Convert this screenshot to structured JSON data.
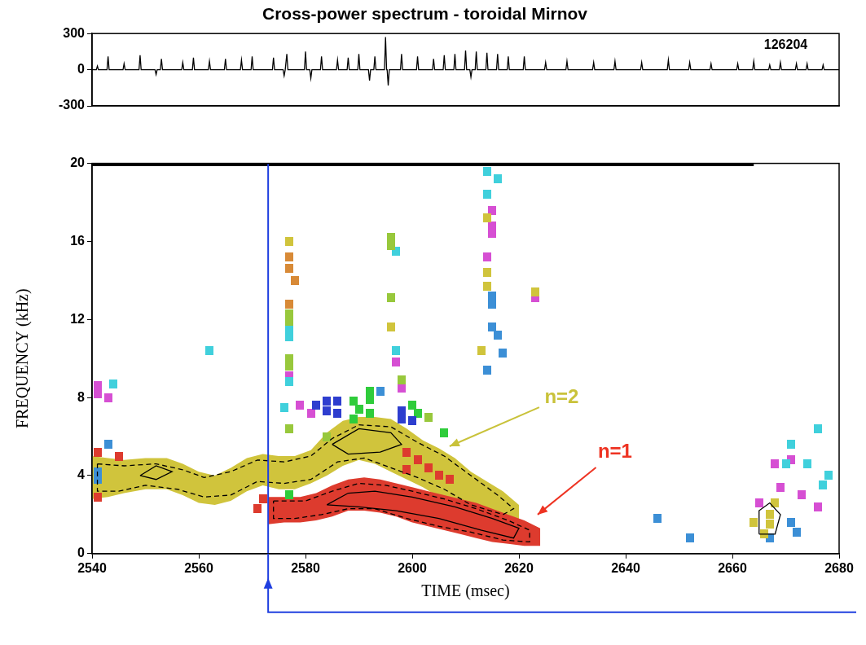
{
  "chart_data": [
    {
      "type": "line",
      "title": "Cross-power spectrum - toroidal Mirnov",
      "xlim": [
        2540,
        2680
      ],
      "ylim": [
        -300,
        300
      ],
      "yticks": [
        -300,
        0,
        300
      ],
      "grid": false,
      "tick_labels": "y",
      "annotations": [
        {
          "text": "126204",
          "x": 2670,
          "y": 200
        }
      ],
      "series": [
        {
          "type": "line",
          "color": "#000000",
          "line_style": "solid",
          "x": [
            2540,
            2540.8,
            2541,
            2541.2,
            2542.8,
            2543,
            2543.2,
            2545.8,
            2546,
            2546.2,
            2548.8,
            2549,
            2549.2,
            2551.8,
            2552,
            2552.2,
            2552.8,
            2553,
            2553.2,
            2556.8,
            2557,
            2557.2,
            2558.8,
            2559,
            2559.2,
            2561.8,
            2562,
            2562.2,
            2564.8,
            2565,
            2565.2,
            2567.8,
            2568,
            2568.2,
            2569.8,
            2570,
            2570.2,
            2573.8,
            2574,
            2574.2,
            2575.8,
            2576,
            2576.2,
            2576.3,
            2576.5,
            2576.7,
            2579.8,
            2580,
            2580.2,
            2580.8,
            2581,
            2581.2,
            2582.8,
            2583,
            2583.2,
            2585.8,
            2586,
            2586.2,
            2587.8,
            2588,
            2588.2,
            2589.8,
            2590,
            2590.2,
            2591.8,
            2592,
            2592.2,
            2592.8,
            2593,
            2593.2,
            2594.8,
            2595,
            2595.2,
            2595.3,
            2595.5,
            2595.7,
            2597.8,
            2598,
            2598.2,
            2600.8,
            2601,
            2601.2,
            2603.8,
            2604,
            2604.2,
            2605.8,
            2606,
            2606.2,
            2607.8,
            2608,
            2608.2,
            2609.8,
            2610,
            2610.2,
            2610.8,
            2611,
            2611.2,
            2611.8,
            2612,
            2612.2,
            2613.8,
            2614,
            2614.2,
            2615.8,
            2616,
            2616.2,
            2617.8,
            2618,
            2618.2,
            2620.8,
            2621,
            2621.2,
            2624.8,
            2625,
            2625.2,
            2628.8,
            2629,
            2629.2,
            2633.8,
            2634,
            2634.2,
            2637.8,
            2638,
            2638.2,
            2642.8,
            2643,
            2643.2,
            2647.8,
            2648,
            2648.2,
            2651.8,
            2652,
            2652.2,
            2655.8,
            2656,
            2656.2,
            2660.8,
            2661,
            2661.2,
            2663.8,
            2664,
            2664.2,
            2666.8,
            2667,
            2667.2,
            2668.8,
            2669,
            2669.2,
            2671.8,
            2672,
            2672.2,
            2673.8,
            2674,
            2674.2,
            2676.8,
            2677,
            2677.2,
            2680
          ],
          "values": [
            0,
            0,
            30,
            0,
            0,
            110,
            0,
            0,
            50,
            0,
            0,
            120,
            0,
            0,
            -40,
            0,
            0,
            90,
            0,
            0,
            60,
            0,
            0,
            100,
            0,
            0,
            70,
            0,
            0,
            90,
            0,
            0,
            80,
            0,
            0,
            110,
            0,
            0,
            100,
            0,
            0,
            -50,
            0,
            0,
            130,
            0,
            0,
            150,
            0,
            0,
            -70,
            0,
            0,
            110,
            0,
            0,
            80,
            0,
            0,
            100,
            0,
            0,
            130,
            0,
            0,
            -90,
            0,
            0,
            110,
            0,
            0,
            270,
            0,
            0,
            -130,
            0,
            0,
            130,
            0,
            0,
            110,
            0,
            0,
            90,
            0,
            0,
            120,
            0,
            0,
            130,
            0,
            0,
            160,
            0,
            0,
            -60,
            0,
            0,
            150,
            0,
            0,
            140,
            0,
            0,
            130,
            0,
            0,
            110,
            0,
            0,
            110,
            0,
            0,
            60,
            0,
            0,
            70,
            0,
            0,
            60,
            0,
            0,
            70,
            0,
            0,
            60,
            0,
            0,
            80,
            0,
            0,
            60,
            0,
            0,
            50,
            0,
            0,
            50,
            0,
            0,
            70,
            0,
            0,
            40,
            0,
            0,
            60,
            0,
            0,
            50,
            0,
            0,
            50,
            0,
            0,
            40,
            0,
            0
          ]
        }
      ]
    },
    {
      "type": "scatter",
      "x_label": "TIME (msec)",
      "y_label": "FREQUENCY (kHz)",
      "xlim": [
        2540,
        2680
      ],
      "xticks": [
        2540,
        2560,
        2580,
        2600,
        2620,
        2640,
        2660,
        2680
      ],
      "ylim": [
        0,
        20
      ],
      "yticks": [
        0,
        4,
        8,
        12,
        16,
        20
      ],
      "grid": false,
      "annotations": [
        {
          "text": "n=2",
          "color": "#c9c23a",
          "x": 2628,
          "y": 8.0,
          "arrow_to": [
            2607,
            5.5
          ]
        },
        {
          "text": "n=1",
          "color": "#ee3322",
          "x": 2638,
          "y": 5.2,
          "arrow_to": [
            2623.5,
            2.0
          ]
        }
      ],
      "series": [
        {
          "type": "area",
          "color": "#d0c43c",
          "x": [
            2540,
            2543,
            2546,
            2550,
            2554,
            2557,
            2560,
            2563,
            2566,
            2569,
            2572,
            2575,
            2578,
            2581,
            2584,
            2587,
            2590,
            2593,
            2596,
            2599,
            2602,
            2605,
            2608,
            2611,
            2614,
            2617,
            2620
          ],
          "values": [
            5.0,
            4.9,
            4.8,
            4.9,
            4.9,
            4.6,
            4.2,
            4.0,
            4.4,
            4.9,
            5.1,
            5.0,
            5.0,
            5.3,
            6.2,
            6.8,
            7.0,
            7.0,
            6.9,
            6.4,
            5.8,
            5.4,
            4.9,
            4.2,
            3.7,
            3.2,
            2.5
          ],
          "lower": [
            2.8,
            2.9,
            3.1,
            3.3,
            3.3,
            3.0,
            2.6,
            2.5,
            2.7,
            3.2,
            3.5,
            3.3,
            3.3,
            3.6,
            4.0,
            4.5,
            4.8,
            4.6,
            4.2,
            3.8,
            3.4,
            2.9,
            2.4,
            2.1,
            1.9,
            1.6,
            1.4
          ]
        },
        {
          "type": "area",
          "color": "#dd3b2e",
          "x": [
            2573,
            2576,
            2579,
            2582,
            2585,
            2588,
            2591,
            2594,
            2597,
            2600,
            2603,
            2606,
            2609,
            2612,
            2615,
            2618,
            2621,
            2624
          ],
          "values": [
            2.9,
            2.9,
            2.9,
            3.1,
            3.5,
            3.8,
            3.9,
            3.8,
            3.6,
            3.4,
            3.2,
            3.0,
            2.8,
            2.6,
            2.3,
            2.0,
            1.7,
            1.3
          ],
          "lower": [
            1.5,
            1.6,
            1.6,
            1.7,
            1.9,
            2.2,
            2.2,
            2.1,
            1.9,
            1.6,
            1.4,
            1.2,
            1.0,
            0.8,
            0.6,
            0.5,
            0.4,
            0.4
          ]
        },
        {
          "type": "scatter",
          "color": "#dd3b2e",
          "marker": "square",
          "x": [
            2541,
            2541,
            2545,
            2571,
            2572,
            2599,
            2601,
            2603,
            2605,
            2607,
            2599
          ],
          "values": [
            2.9,
            5.2,
            5.0,
            2.3,
            2.8,
            4.3,
            4.8,
            4.4,
            4.0,
            3.8,
            5.2
          ]
        },
        {
          "type": "scatter",
          "color": "#3c8fd6",
          "marker": "square",
          "x": [
            2541,
            2541,
            2543,
            2594,
            2614,
            2615,
            2615,
            2615,
            2616,
            2617,
            2646,
            2652,
            2667,
            2671,
            2672
          ],
          "values": [
            4.2,
            3.8,
            5.6,
            8.3,
            9.4,
            13.2,
            12.8,
            11.6,
            11.2,
            10.3,
            1.8,
            0.8,
            0.8,
            1.6,
            1.1
          ]
        },
        {
          "type": "scatter",
          "color": "#d64fd3",
          "marker": "square",
          "x": [
            2541,
            2541,
            2543,
            2577,
            2579,
            2581,
            2597,
            2598,
            2614,
            2615,
            2615,
            2615,
            2623,
            2665,
            2668,
            2669,
            2671,
            2673,
            2676
          ],
          "values": [
            8.6,
            8.2,
            8.0,
            9.1,
            7.6,
            7.2,
            9.8,
            8.5,
            15.2,
            17.6,
            16.8,
            16.4,
            13.1,
            2.6,
            4.6,
            3.4,
            4.8,
            3.0,
            2.4
          ]
        },
        {
          "type": "scatter",
          "color": "#40d0dc",
          "marker": "square",
          "x": [
            2544,
            2562,
            2576,
            2577,
            2577,
            2577,
            2597,
            2597,
            2614,
            2614,
            2616,
            2670,
            2671,
            2674,
            2676,
            2677,
            2678
          ],
          "values": [
            8.7,
            10.4,
            7.5,
            11.5,
            11.1,
            8.8,
            15.5,
            10.4,
            19.6,
            18.4,
            19.2,
            4.6,
            5.6,
            4.6,
            6.4,
            3.5,
            4.0
          ]
        },
        {
          "type": "scatter",
          "color": "#d88a37",
          "marker": "square",
          "x": [
            2577,
            2577,
            2577,
            2578
          ],
          "values": [
            15.2,
            14.6,
            12.8,
            14.0
          ]
        },
        {
          "type": "scatter",
          "color": "#98c83c",
          "marker": "square",
          "x": [
            2577,
            2577,
            2577,
            2577,
            2577,
            2584,
            2596,
            2596,
            2596,
            2598,
            2603
          ],
          "values": [
            10.0,
            9.6,
            12.3,
            11.9,
            6.4,
            6.0,
            16.2,
            15.8,
            13.1,
            8.9,
            7.0
          ]
        },
        {
          "type": "scatter",
          "color": "#2fcc3b",
          "marker": "square",
          "x": [
            2577,
            2589,
            2589,
            2590,
            2592,
            2592,
            2592,
            2600,
            2601,
            2606
          ],
          "values": [
            3.0,
            7.8,
            6.9,
            7.4,
            7.2,
            7.9,
            8.3,
            7.6,
            7.2,
            6.2
          ]
        },
        {
          "type": "scatter",
          "color": "#2e3ecf",
          "marker": "square",
          "x": [
            2582,
            2584,
            2584,
            2586,
            2586,
            2598,
            2598,
            2600
          ],
          "values": [
            7.6,
            7.8,
            7.3,
            7.2,
            7.8,
            7.3,
            6.9,
            6.8
          ]
        },
        {
          "type": "scatter",
          "color": "#d0c43c",
          "marker": "square",
          "x": [
            2577,
            2596,
            2613,
            2614,
            2614,
            2614,
            2623,
            2664,
            2666,
            2667,
            2667,
            2668
          ],
          "values": [
            16.0,
            11.6,
            10.4,
            17.2,
            14.4,
            13.7,
            13.4,
            1.6,
            1.0,
            2.0,
            1.5,
            2.6
          ]
        },
        {
          "type": "line",
          "color": "#000000",
          "line_style": "dashed",
          "x": [
            2541,
            2546,
            2552,
            2557,
            2561,
            2566,
            2571,
            2576,
            2581,
            2585,
            2590,
            2596,
            2601,
            2606,
            2611,
            2616,
            2619,
            2617,
            2611,
            2606,
            2601,
            2596,
            2591,
            2586,
            2581,
            2576,
            2571,
            2566,
            2561,
            2556,
            2550,
            2545,
            2541,
            2541
          ],
          "values": [
            4.6,
            4.5,
            4.6,
            4.3,
            3.9,
            4.2,
            4.8,
            4.7,
            5.0,
            5.9,
            6.6,
            6.5,
            5.7,
            5.0,
            4.0,
            3.0,
            2.3,
            2.0,
            2.5,
            3.3,
            3.9,
            4.4,
            4.9,
            4.7,
            3.8,
            3.6,
            3.7,
            3.0,
            2.9,
            3.3,
            3.5,
            3.2,
            3.2,
            4.6
          ]
        },
        {
          "type": "line",
          "color": "#000000",
          "line_style": "solid",
          "x": [
            2585,
            2590,
            2596,
            2598,
            2594,
            2588,
            2585
          ],
          "values": [
            5.6,
            6.4,
            6.2,
            5.6,
            5.2,
            5.1,
            5.6
          ]
        },
        {
          "type": "line",
          "color": "#000000",
          "line_style": "solid",
          "x": [
            2549,
            2552,
            2555,
            2552,
            2549
          ],
          "values": [
            4.0,
            4.5,
            4.2,
            3.8,
            4.0
          ]
        },
        {
          "type": "line",
          "color": "#000000",
          "line_style": "dashed",
          "x": [
            2574,
            2580,
            2585,
            2590,
            2595,
            2600,
            2606,
            2612,
            2618,
            2622,
            2622,
            2617,
            2611,
            2605,
            2599,
            2593,
            2588,
            2583,
            2578,
            2574,
            2574
          ],
          "values": [
            2.7,
            2.7,
            3.2,
            3.6,
            3.5,
            3.2,
            2.8,
            2.3,
            1.7,
            1.2,
            0.6,
            0.7,
            1.1,
            1.4,
            1.8,
            2.3,
            2.3,
            2.0,
            1.8,
            1.8,
            2.7
          ]
        },
        {
          "type": "line",
          "color": "#000000",
          "line_style": "solid",
          "x": [
            2584,
            2588,
            2593,
            2600,
            2608,
            2615,
            2620,
            2619,
            2613,
            2605,
            2597,
            2590,
            2584
          ],
          "values": [
            2.5,
            3.1,
            3.2,
            2.9,
            2.4,
            1.8,
            1.3,
            0.8,
            1.2,
            1.8,
            2.2,
            2.4,
            2.5
          ]
        },
        {
          "type": "line",
          "color": "#000000",
          "line_style": "solid",
          "x": [
            2665,
            2665,
            2667,
            2669,
            2668,
            2665
          ],
          "values": [
            1.0,
            2.2,
            2.6,
            2.0,
            1.0,
            1.0
          ]
        },
        {
          "type": "line",
          "color": "#000000",
          "line_style": "bold",
          "x": [
            2540,
            2664
          ],
          "values": [
            20,
            20
          ]
        },
        {
          "type": "line",
          "color": "#1f3fe0",
          "line_style": "solid",
          "marker": "arrow",
          "x": [
            2573,
            2573
          ],
          "values": [
            0,
            20
          ]
        }
      ]
    }
  ]
}
